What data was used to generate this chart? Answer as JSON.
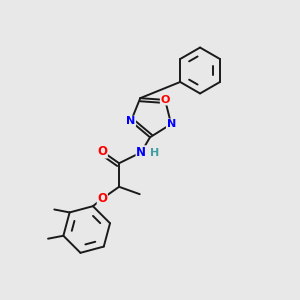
{
  "bg_color": "#e8e8e8",
  "bond_color": "#1a1a1a",
  "atom_colors": {
    "N": "#0000ff",
    "O": "#ff0000",
    "H": "#40a0a0",
    "C": "#1a1a1a"
  },
  "figsize": [
    3.0,
    3.0
  ],
  "dpi": 100,
  "lw": 1.4
}
